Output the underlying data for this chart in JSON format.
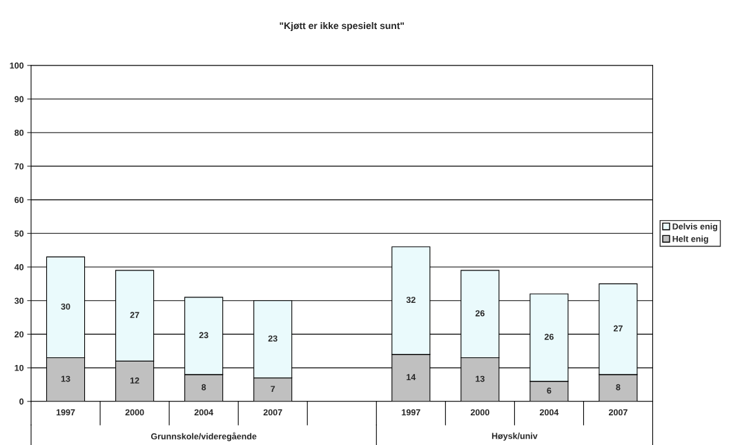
{
  "chart_data": {
    "type": "bar",
    "title": "\"Kjøtt er ikke spesielt sunt\"",
    "categories": [
      "1997",
      "2000",
      "2004",
      "2007",
      null,
      "1997",
      "2000",
      "2004",
      "2007"
    ],
    "series": [
      {
        "name": "Helt enig",
        "color": "#c0c0c0",
        "values": [
          13,
          12,
          8,
          7,
          null,
          14,
          13,
          6,
          8
        ]
      },
      {
        "name": "Delvis enig",
        "color": "#eafafc",
        "values": [
          30,
          27,
          23,
          23,
          null,
          32,
          26,
          26,
          27
        ]
      }
    ],
    "stacked": true,
    "ylim": [
      0,
      100
    ],
    "yticks": [
      0,
      10,
      20,
      30,
      40,
      50,
      60,
      70,
      80,
      90,
      100
    ],
    "grid": "y",
    "legend": "right",
    "data_labels": true,
    "annotations": [
      "Grunnskole/videregående",
      "Høysk/univ"
    ]
  }
}
